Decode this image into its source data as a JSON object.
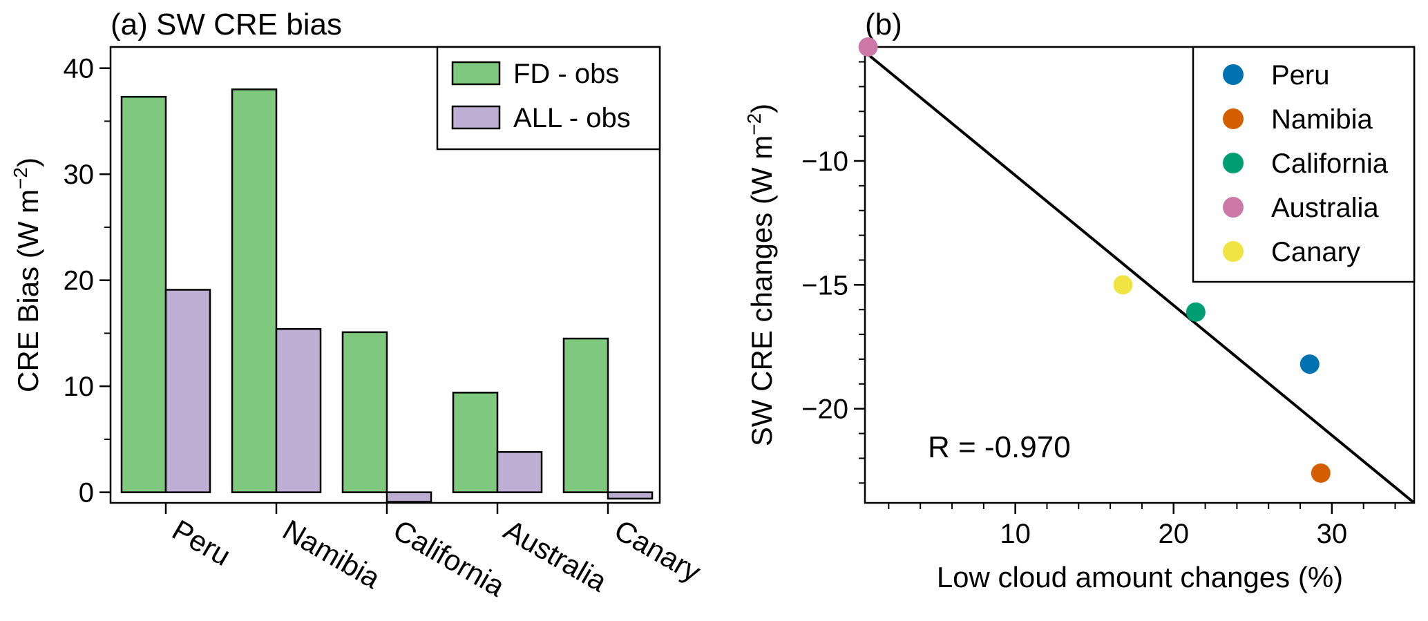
{
  "chart_data": [
    {
      "type": "bar",
      "title": "(a) SW CRE bias",
      "xlabel": "",
      "ylabel": "CRE Bias (W m⁻²)",
      "ylabel_main": "CRE Bias (W m",
      "ylabel_sup": "−2",
      "ylabel_end": ")",
      "ylim": [
        -1,
        42
      ],
      "yticks": [
        0,
        10,
        20,
        30,
        40
      ],
      "categories": [
        "Peru",
        "Namibia",
        "California",
        "Australia",
        "Canary"
      ],
      "series": [
        {
          "name": "FD - obs",
          "color": "#7fc97f",
          "values": [
            37.3,
            38.0,
            15.1,
            9.4,
            14.5
          ]
        },
        {
          "name": "ALL - obs",
          "color": "#beaed4",
          "values": [
            19.1,
            15.4,
            -0.9,
            3.8,
            -0.6
          ]
        }
      ],
      "legend_position": "top-right"
    },
    {
      "type": "scatter",
      "title": "(b)",
      "xlabel": "Low cloud amount changes (%)",
      "ylabel": "SW CRE changes (W m⁻²)",
      "ylabel_main": "SW CRE changes (W m",
      "ylabel_sup": "−2",
      "ylabel_end": ")",
      "xlim": [
        0.5,
        35.2
      ],
      "ylim": [
        -23.8,
        -5.4
      ],
      "xticks": [
        10,
        20,
        30
      ],
      "yticks": [
        -10,
        -15,
        -20
      ],
      "ytick_labels": [
        "−10",
        "−15",
        "−20"
      ],
      "points": [
        {
          "name": "Peru",
          "x": 28.6,
          "y": -18.2,
          "color": "#0072b2"
        },
        {
          "name": "Namibia",
          "x": 29.3,
          "y": -22.6,
          "color": "#d55e00"
        },
        {
          "name": "California",
          "x": 21.4,
          "y": -16.1,
          "color": "#009e73"
        },
        {
          "name": "Australia",
          "x": 0.7,
          "y": -5.4,
          "color": "#cc79a7"
        },
        {
          "name": "Canary",
          "x": 16.8,
          "y": -15.0,
          "color": "#f0e442"
        }
      ],
      "fit_line": {
        "x": [
          0.5,
          35.2
        ],
        "y": [
          -5.6,
          -23.8
        ]
      },
      "annotation": "R = -0.970",
      "legend_position": "top-right"
    }
  ]
}
